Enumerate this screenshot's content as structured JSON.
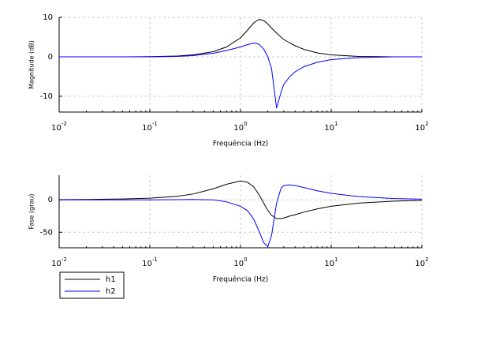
{
  "chart_data": [
    {
      "type": "line",
      "log_x": true,
      "grid": true,
      "xlabel": "Frequência (Hz)",
      "ylabel": "Magnitude (dB)",
      "x": [
        0.01,
        0.02,
        0.05,
        0.1,
        0.2,
        0.3,
        0.5,
        0.7,
        1,
        1.2,
        1.4,
        1.6,
        1.8,
        2,
        2.2,
        2.5,
        2.8,
        3,
        3.5,
        4,
        5,
        7,
        10,
        20,
        50,
        100
      ],
      "series": [
        {
          "color": "#000000",
          "values": [
            0,
            0,
            0,
            0.05,
            0.2,
            0.5,
            1.3,
            2.5,
            4.8,
            6.8,
            8.6,
            9.5,
            9.2,
            8.3,
            7.3,
            6,
            5,
            4.4,
            3.5,
            2.8,
            1.9,
            1.0,
            0.5,
            0.1,
            0,
            0
          ]
        },
        {
          "color": "#0000ff",
          "values": [
            0,
            0,
            0,
            0,
            0.1,
            0.3,
            0.9,
            1.6,
            2.5,
            3.1,
            3.5,
            3.2,
            2,
            0,
            -3,
            -13,
            -9,
            -7,
            -5,
            -3.8,
            -2.5,
            -1.4,
            -0.7,
            -0.2,
            0,
            0
          ]
        }
      ],
      "xlim": [
        0.01,
        100
      ],
      "xticks": [
        {
          "value": 0.01,
          "label": "10^-2"
        },
        {
          "value": 0.1,
          "label": "10^-1"
        },
        {
          "value": 1,
          "label": "10^0"
        },
        {
          "value": 10,
          "label": "10^1"
        },
        {
          "value": 100,
          "label": "10^2"
        }
      ],
      "ylim": [
        -14,
        10
      ],
      "yticks": [
        -10,
        0,
        10
      ]
    },
    {
      "type": "line",
      "log_x": true,
      "grid": true,
      "legend": "below-left",
      "xlabel": "Frequência (Hz)",
      "ylabel": "Fase (grau)",
      "x": [
        0.01,
        0.02,
        0.05,
        0.1,
        0.2,
        0.3,
        0.5,
        0.7,
        1,
        1.2,
        1.4,
        1.6,
        1.8,
        2,
        2.2,
        2.5,
        2.8,
        3,
        3.5,
        4,
        5,
        7,
        10,
        20,
        50,
        100
      ],
      "series": [
        {
          "name": "h1",
          "color": "#000000",
          "values": [
            0.2,
            0.5,
            1.3,
            2.6,
            5.5,
            9,
            17,
            24,
            29,
            27,
            20,
            8,
            -5,
            -16,
            -24,
            -29,
            -29,
            -28,
            -25,
            -23,
            -19,
            -14,
            -10,
            -5,
            -2,
            -1
          ]
        },
        {
          "name": "h2",
          "color": "#0000ff",
          "values": [
            0,
            0,
            0,
            0,
            0.2,
            0.5,
            0,
            -3,
            -10,
            -17,
            -30,
            -48,
            -66,
            -72,
            -55,
            -5,
            18,
            22,
            23,
            22,
            19,
            14,
            10,
            5,
            2,
            1
          ]
        }
      ],
      "xlim": [
        0.01,
        100
      ],
      "xticks": [
        {
          "value": 0.01,
          "label": "10^-2"
        },
        {
          "value": 0.1,
          "label": "10^-1"
        },
        {
          "value": 1,
          "label": "10^0"
        },
        {
          "value": 10,
          "label": "10^1"
        },
        {
          "value": 100,
          "label": "10^2"
        }
      ],
      "ylim": [
        -74,
        38
      ],
      "yticks": [
        -50,
        0
      ]
    }
  ]
}
